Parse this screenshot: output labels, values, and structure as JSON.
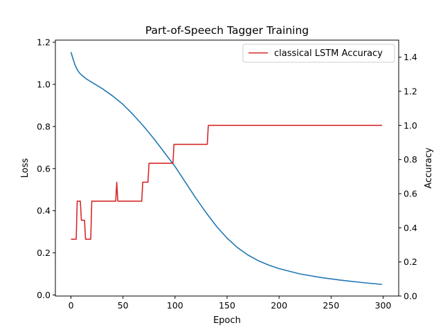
{
  "chart_data": {
    "type": "line",
    "title": "Part-of-Speech Tagger Training",
    "xlabel": "Epoch",
    "ylabel_left": "Loss",
    "ylabel_right": "Accuracy",
    "xlim": [
      -15,
      315
    ],
    "ylim_left": [
      -0.005,
      1.21
    ],
    "ylim_right": [
      0,
      1.5
    ],
    "xticks": [
      0,
      50,
      100,
      150,
      200,
      250,
      300
    ],
    "yticks_left": [
      0.0,
      0.2,
      0.4,
      0.6,
      0.8,
      1.0,
      1.2
    ],
    "yticks_right": [
      0.0,
      0.2,
      0.4,
      0.6,
      0.8,
      1.0,
      1.2,
      1.4
    ],
    "legend_position": "upper-right",
    "series": [
      {
        "name": "",
        "axis": "left",
        "color": "#1f77b4",
        "x": [
          0,
          2,
          4,
          6,
          8,
          10,
          15,
          20,
          30,
          40,
          50,
          60,
          70,
          80,
          90,
          100,
          110,
          120,
          130,
          140,
          150,
          160,
          170,
          180,
          190,
          200,
          220,
          240,
          260,
          280,
          299
        ],
        "y": [
          1.153,
          1.12,
          1.09,
          1.07,
          1.055,
          1.045,
          1.025,
          1.01,
          0.98,
          0.945,
          0.905,
          0.855,
          0.8,
          0.74,
          0.675,
          0.61,
          0.535,
          0.46,
          0.39,
          0.325,
          0.27,
          0.225,
          0.19,
          0.163,
          0.142,
          0.125,
          0.1,
          0.083,
          0.07,
          0.059,
          0.05
        ]
      },
      {
        "name": "classical LSTM Accuracy",
        "axis": "right",
        "color": "#d62728",
        "x": [
          0,
          5,
          6,
          9,
          10,
          13,
          14,
          19,
          20,
          43,
          44,
          45,
          68,
          69,
          74,
          75,
          98,
          99,
          131,
          132,
          299
        ],
        "y": [
          0.333,
          0.333,
          0.556,
          0.556,
          0.444,
          0.444,
          0.333,
          0.333,
          0.556,
          0.556,
          0.667,
          0.556,
          0.556,
          0.667,
          0.667,
          0.778,
          0.778,
          0.889,
          0.889,
          1.0,
          1.0
        ]
      }
    ]
  }
}
